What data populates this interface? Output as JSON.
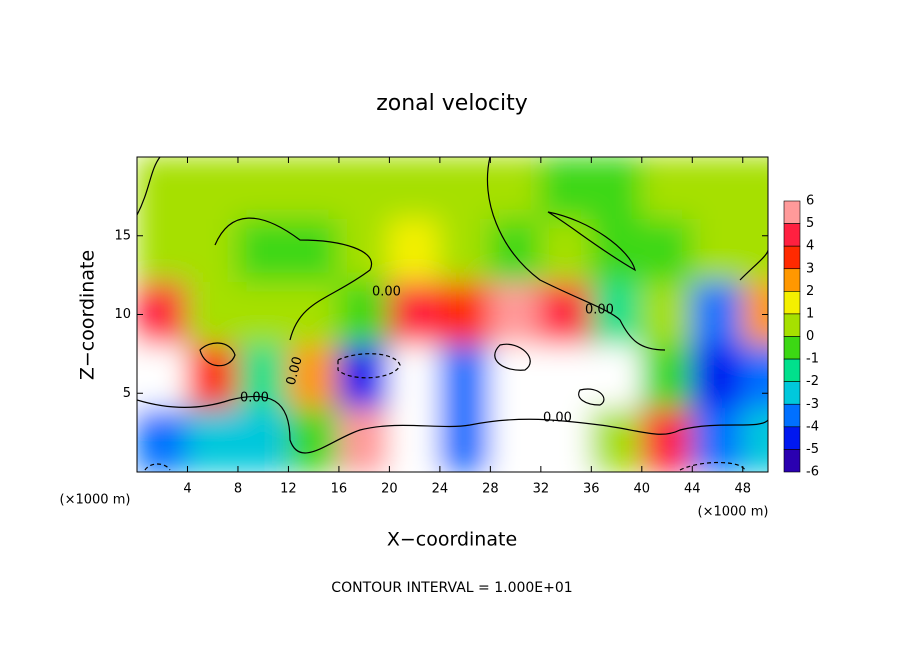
{
  "chart_data": {
    "type": "contour",
    "title": "zonal velocity",
    "x_label": "X−coordinate",
    "y_label": "Z−coordinate",
    "x_unit_label": "(×1000 m)",
    "footer": "CONTOUR INTERVAL = 1.000E+01",
    "xlim": [
      0,
      50
    ],
    "ylim": [
      0,
      20
    ],
    "xticks": [
      4,
      8,
      12,
      16,
      20,
      24,
      28,
      32,
      36,
      40,
      44,
      48
    ],
    "yticks": [
      5,
      10,
      15
    ],
    "contour_labels": [
      "0.00",
      "0.00",
      "0.00",
      "0.00",
      "0.00"
    ],
    "colorbar": {
      "levels": [
        6,
        5,
        4,
        3,
        2,
        1,
        0,
        -1,
        -2,
        -3,
        -4,
        -5,
        -6
      ],
      "colors": [
        "#ff9a9a",
        "#ff2040",
        "#ff2a00",
        "#ff9800",
        "#f4f000",
        "#a6e000",
        "#3cd814",
        "#00e08c",
        "#00c8dc",
        "#0070ff",
        "#0018f0",
        "#2a00b0"
      ]
    },
    "field": {
      "x": [
        2,
        6,
        10,
        14,
        18,
        22,
        26,
        30,
        34,
        38,
        42,
        46,
        50
      ],
      "z": [
        18,
        14,
        10,
        6,
        2
      ],
      "values": [
        [
          0,
          0.5,
          0,
          0,
          0,
          0,
          0,
          0.5,
          -1,
          -1,
          0,
          0,
          0
        ],
        [
          0,
          0,
          -1,
          -1,
          0,
          1,
          0,
          -1,
          0,
          -1,
          -1,
          0,
          0
        ],
        [
          4,
          0.5,
          0,
          0,
          -1,
          4,
          3,
          5,
          4,
          -2,
          0,
          -4,
          2
        ],
        [
          8,
          3,
          -2,
          2,
          -5,
          8,
          -4,
          9,
          9,
          8,
          -1,
          -5,
          -4
        ],
        [
          -4,
          -3,
          -3,
          -1,
          6,
          8,
          -4,
          9,
          8,
          0,
          4,
          -4,
          -3
        ]
      ]
    }
  }
}
